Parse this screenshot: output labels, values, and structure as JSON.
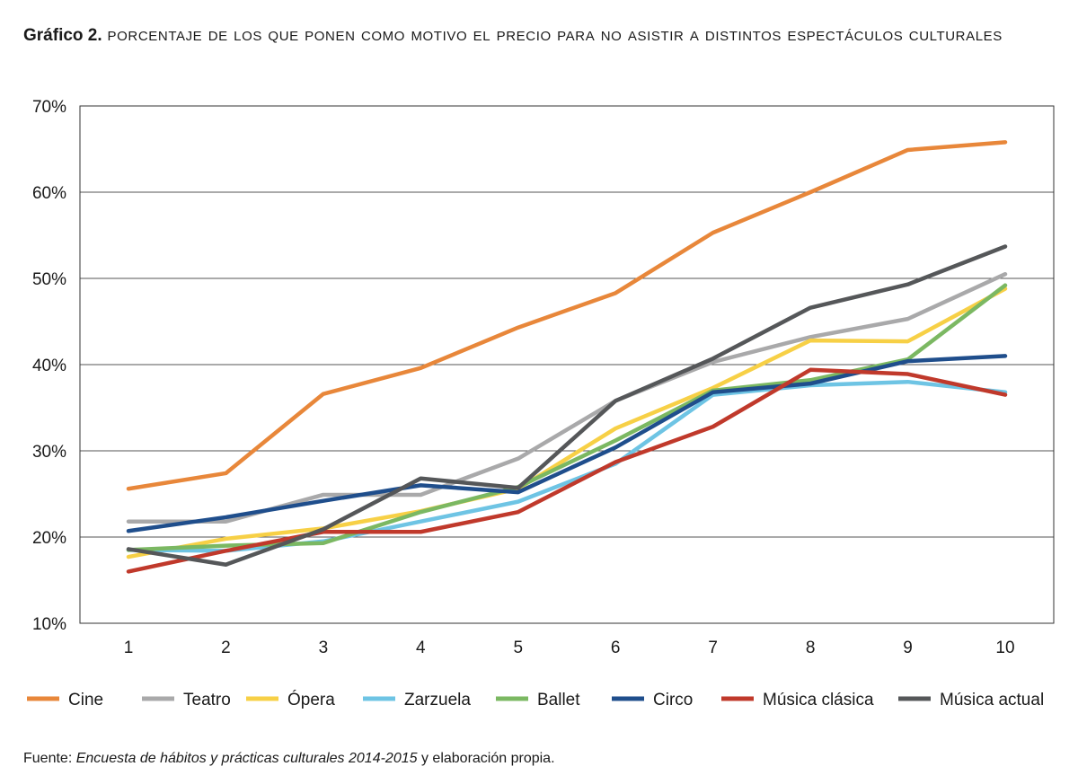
{
  "title": {
    "lead": "Gráfico 2.",
    "text": "Porcentaje de los que ponen como motivo el precio para no asistir a distintos espectáculos culturales"
  },
  "source": {
    "prefix": "Fuente:",
    "italic": "Encuesta de hábitos y prácticas culturales 2014-2015",
    "suffix": "y elaboración propia."
  },
  "chart_data": {
    "type": "line",
    "title": "Porcentaje de los que ponen como motivo el precio para no asistir a distintos espectáculos culturales",
    "xlabel": "",
    "ylabel": "",
    "x": [
      1,
      2,
      3,
      4,
      5,
      6,
      7,
      8,
      9,
      10
    ],
    "ylim": [
      10,
      70
    ],
    "yticks": [
      10,
      20,
      30,
      40,
      50,
      60,
      70
    ],
    "ytick_labels": [
      "10%",
      "20%",
      "30%",
      "40%",
      "50%",
      "60%",
      "70%"
    ],
    "grid": "horizontal",
    "legend": "bottom",
    "series": [
      {
        "name": "Cine",
        "color": "#E8873A",
        "values": [
          25.6,
          27.4,
          36.6,
          39.6,
          44.3,
          48.3,
          55.3,
          60.0,
          64.9,
          65.8
        ]
      },
      {
        "name": "Teatro",
        "color": "#A9A9AA",
        "values": [
          21.8,
          21.8,
          24.9,
          24.9,
          29.1,
          35.8,
          40.3,
          43.2,
          45.3,
          50.5
        ]
      },
      {
        "name": "Ópera",
        "color": "#F7D046",
        "values": [
          17.7,
          19.8,
          21.0,
          23.0,
          25.6,
          32.6,
          37.3,
          42.8,
          42.7,
          48.8
        ]
      },
      {
        "name": "Zarzuela",
        "color": "#6EC4E4",
        "values": [
          18.5,
          18.4,
          19.5,
          21.8,
          24.1,
          28.5,
          36.5,
          37.6,
          38.0,
          36.8
        ]
      },
      {
        "name": "Ballet",
        "color": "#7BB862",
        "values": [
          18.5,
          19.0,
          19.3,
          22.9,
          25.8,
          31.2,
          37.0,
          38.2,
          40.6,
          49.2
        ]
      },
      {
        "name": "Circo",
        "color": "#1F4E8C",
        "values": [
          20.7,
          22.3,
          24.2,
          26.0,
          25.2,
          30.4,
          36.8,
          37.8,
          40.4,
          41.0
        ]
      },
      {
        "name": "Música clásica",
        "color": "#C0392B",
        "values": [
          16.0,
          18.4,
          20.6,
          20.6,
          22.9,
          28.7,
          32.8,
          39.4,
          38.9,
          36.5
        ]
      },
      {
        "name": "Música actual",
        "color": "#555759",
        "values": [
          18.6,
          16.8,
          20.9,
          26.8,
          25.7,
          35.8,
          40.7,
          46.6,
          49.3,
          53.7
        ]
      }
    ]
  }
}
